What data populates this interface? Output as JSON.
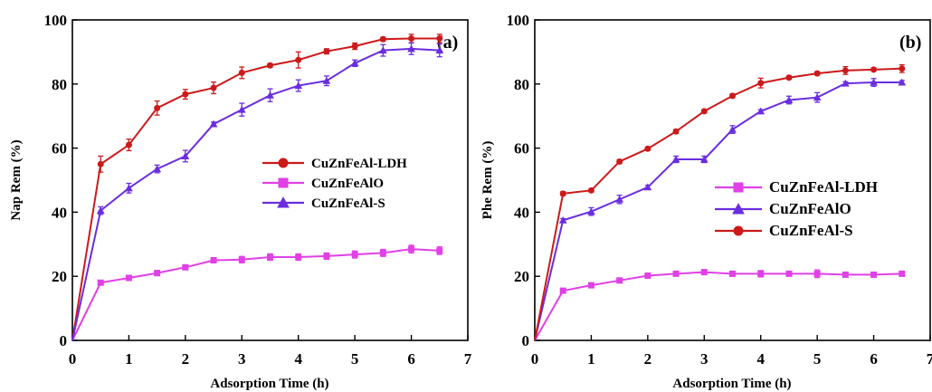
{
  "chart_data": [
    {
      "type": "line",
      "panel_label": "(a)",
      "xlabel": "Adsorption Time (h)",
      "ylabel": "Nap Rem (%)",
      "xlim": [
        0,
        7
      ],
      "ylim": [
        0,
        100
      ],
      "xticks": [
        "0",
        "1",
        "2",
        "3",
        "4",
        "5",
        "6",
        "7"
      ],
      "yticks": [
        "0",
        "20",
        "40",
        "60",
        "80",
        "100"
      ],
      "legend_position": "center-right",
      "x": [
        0,
        0.5,
        1,
        1.5,
        2,
        2.5,
        3,
        3.5,
        4,
        4.5,
        5,
        5.5,
        6,
        6.5
      ],
      "series": [
        {
          "name": "CuZnFeAl-LDH",
          "color": "#cc1a1a",
          "marker": "circle",
          "values": [
            0,
            55,
            61,
            72.5,
            76.8,
            78.8,
            83.5,
            85.8,
            87.5,
            90.2,
            91.8,
            94,
            94.2,
            94.2
          ],
          "errors": [
            0,
            2.5,
            1.8,
            2.2,
            1.5,
            1.8,
            1.8,
            0.6,
            2.5,
            0.8,
            1,
            0.6,
            1.3,
            1.3
          ]
        },
        {
          "name": "CuZnFeAlO",
          "color": "#e040e6",
          "marker": "square",
          "values": [
            0,
            18,
            19.5,
            21,
            22.8,
            25,
            25.2,
            26,
            26,
            26.3,
            26.8,
            27.3,
            28.5,
            28
          ],
          "errors": [
            0,
            0.5,
            0.6,
            0.8,
            0.6,
            0.8,
            1,
            1,
            1,
            1,
            1.1,
            1.1,
            1.2,
            1.2
          ]
        },
        {
          "name": "CuZnFeAl-S",
          "color": "#6a2de0",
          "marker": "triangle",
          "values": [
            0,
            40.5,
            47.5,
            53.5,
            57.5,
            67.5,
            72,
            76.5,
            79.5,
            81,
            86.5,
            90.5,
            91,
            90.5
          ],
          "errors": [
            0,
            1.2,
            1.5,
            1.2,
            1.8,
            0.6,
            2,
            2,
            1.8,
            1.5,
            1,
            1.8,
            1.8,
            2
          ]
        }
      ]
    },
    {
      "type": "line",
      "panel_label": "(b)",
      "xlabel": "Adsorption Time (h)",
      "ylabel": "Phe Rem (%)",
      "xlim": [
        0,
        7
      ],
      "ylim": [
        0,
        100
      ],
      "xticks": [
        "0",
        "1",
        "2",
        "3",
        "4",
        "5",
        "6",
        "7"
      ],
      "yticks": [
        "0",
        "20",
        "40",
        "60",
        "80",
        "100"
      ],
      "legend_position": "center-right",
      "x": [
        0,
        0.5,
        1,
        1.5,
        2,
        2.5,
        3,
        3.5,
        4,
        4.5,
        5,
        5.5,
        6,
        6.5
      ],
      "series": [
        {
          "name": "CuZnFeAl-LDH",
          "color": "#e040e6",
          "marker": "square",
          "values": [
            0,
            15.5,
            17.2,
            18.7,
            20.2,
            20.8,
            21.3,
            20.8,
            20.8,
            20.8,
            20.8,
            20.5,
            20.5,
            20.8
          ],
          "errors": [
            0,
            0.4,
            0.6,
            0.6,
            0.5,
            0.7,
            0.7,
            0.7,
            1,
            0.5,
            1.2,
            0.5,
            0.6,
            0.5
          ]
        },
        {
          "name": "CuZnFeAlO",
          "color": "#6a2de0",
          "marker": "triangle",
          "values": [
            0,
            37.5,
            40.2,
            44,
            47.8,
            56.5,
            56.5,
            65.8,
            71.5,
            75,
            75.8,
            80.2,
            80.5,
            80.5
          ],
          "errors": [
            0,
            0.5,
            1.2,
            1.3,
            0.6,
            1,
            1,
            1.2,
            0.5,
            1.2,
            1.5,
            0.5,
            1.2,
            0.6
          ]
        },
        {
          "name": "CuZnFeAl-S",
          "color": "#cc1a1a",
          "marker": "circle",
          "values": [
            0,
            45.8,
            46.8,
            55.8,
            59.8,
            65.2,
            71.5,
            76.3,
            80.3,
            82,
            83.3,
            84.2,
            84.5,
            84.8
          ],
          "errors": [
            0,
            0.6,
            0.5,
            0.6,
            0.5,
            0.6,
            0.5,
            0.6,
            1.5,
            0.5,
            0.5,
            1.2,
            0.5,
            1.2
          ]
        }
      ]
    }
  ]
}
